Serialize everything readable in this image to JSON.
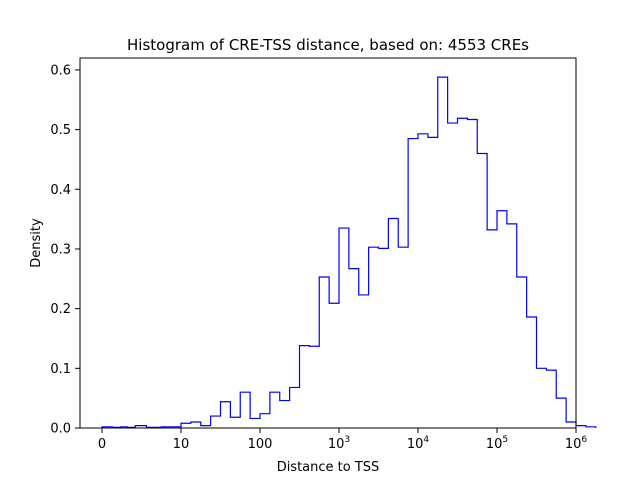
{
  "chart_data": {
    "type": "histogram-step",
    "title": "Histogram of CRE-TSS distance, based on: 4553 CREs",
    "xlabel": "Distance to TSS",
    "ylabel": "Density",
    "xscale": "log-with-zero",
    "xlim": [
      0,
      1000000
    ],
    "ylim": [
      0,
      0.62
    ],
    "grid": false,
    "line_color": "#0000ff",
    "x_ticks": [
      {
        "value": 0,
        "base": "0",
        "exp": ""
      },
      {
        "value": 10,
        "base": "10",
        "exp": ""
      },
      {
        "value": 100,
        "base": "100",
        "exp": ""
      },
      {
        "value": 1000,
        "base": "10",
        "exp": "3"
      },
      {
        "value": 10000,
        "base": "10",
        "exp": "4"
      },
      {
        "value": 100000,
        "base": "10",
        "exp": "5"
      },
      {
        "value": 1000000,
        "base": "10",
        "exp": "6"
      }
    ],
    "y_ticks": [
      "0.0",
      "0.1",
      "0.2",
      "0.3",
      "0.4",
      "0.5",
      "0.6"
    ],
    "bins": {
      "bin_start": 0,
      "bin_width_log10": 0.125,
      "densities": [
        0.002,
        0.001,
        0.001,
        0.002,
        0.001,
        0.004,
        0.001,
        0.002,
        0.008,
        0.01,
        0.004,
        0.02,
        0.044,
        0.018,
        0.06,
        0.016,
        0.024,
        0.06,
        0.046,
        0.068,
        0.138,
        0.137,
        0.253,
        0.209,
        0.335,
        0.267,
        0.223,
        0.303,
        0.301,
        0.351,
        0.303,
        0.485,
        0.493,
        0.487,
        0.588,
        0.511,
        0.519,
        0.517,
        0.46,
        0.332,
        0.364,
        0.342,
        0.253,
        0.186,
        0.1,
        0.097,
        0.05,
        0.01,
        0.004,
        0.002
      ]
    }
  }
}
